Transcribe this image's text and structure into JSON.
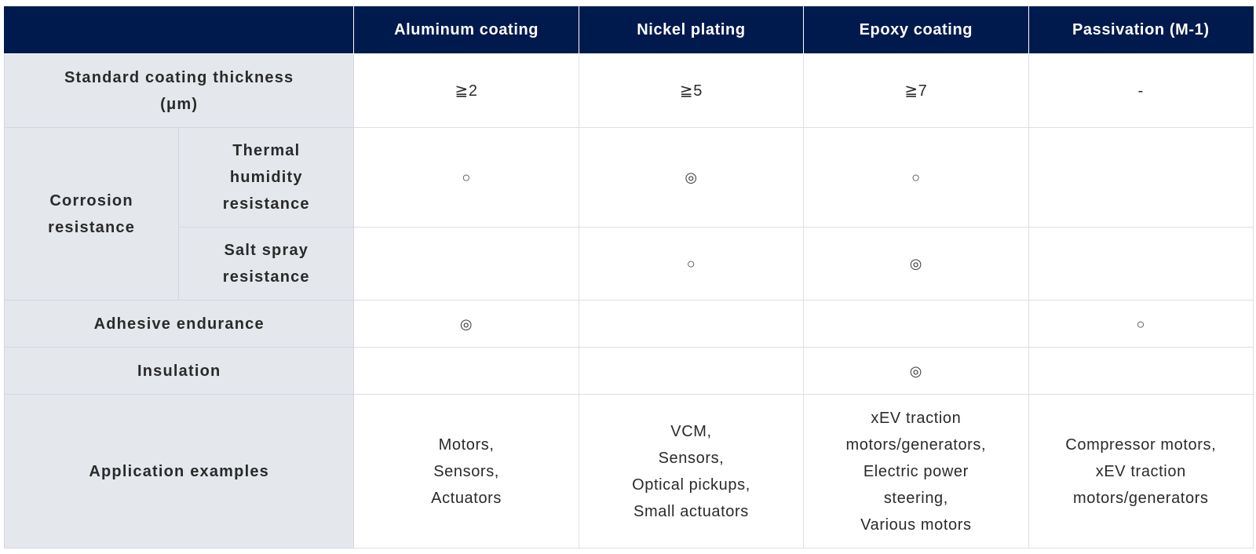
{
  "header": {
    "corner": "",
    "columns": [
      "Aluminum coating",
      "Nickel plating",
      "Epoxy coating",
      "Passivation (M-1)"
    ]
  },
  "rows": {
    "thickness": {
      "label_lines": [
        "Standard coating thickness",
        "(μm)"
      ],
      "values": [
        "≧2",
        "≧5",
        "≧7",
        "-"
      ]
    },
    "corrosion": {
      "label_lines": [
        "Corrosion",
        "resistance"
      ],
      "humidity": {
        "label_lines": [
          "Thermal",
          "humidity",
          "resistance"
        ],
        "values": [
          "○",
          "◎",
          "○",
          ""
        ]
      },
      "salt": {
        "label_lines": [
          "Salt spray",
          "resistance"
        ],
        "values": [
          "",
          "○",
          "◎",
          ""
        ]
      }
    },
    "adhesive": {
      "label": "Adhesive endurance",
      "values": [
        "◎",
        "",
        "",
        "○"
      ]
    },
    "insulation": {
      "label": "Insulation",
      "values": [
        "",
        "",
        "◎",
        ""
      ]
    },
    "applications": {
      "label": "Application examples",
      "values": [
        [
          "Motors,",
          "Sensors,",
          "Actuators"
        ],
        [
          "VCM,",
          "Sensors,",
          "Optical pickups,",
          "Small actuators"
        ],
        [
          "xEV traction",
          "motors/generators,",
          "Electric power",
          "steering,",
          "Various motors"
        ],
        [
          "Compressor motors,",
          "xEV traction",
          "motors/generators"
        ]
      ]
    }
  }
}
